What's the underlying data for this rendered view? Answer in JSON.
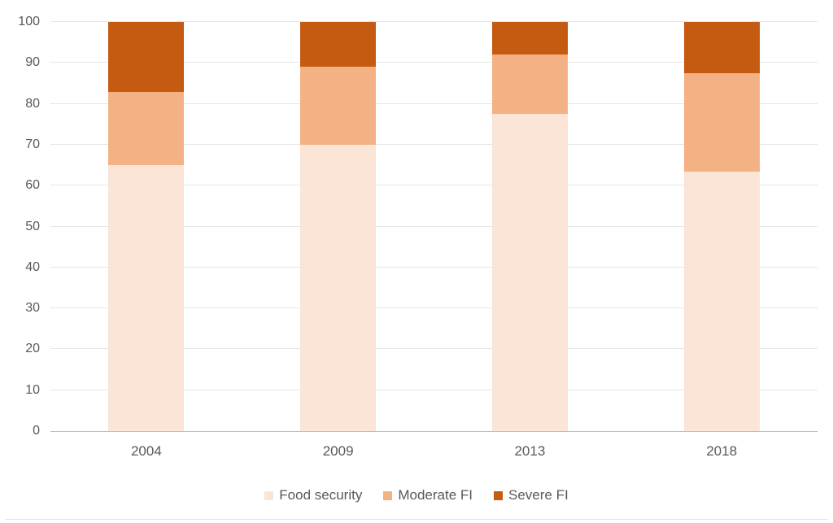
{
  "chart_data": {
    "type": "bar",
    "stacked": true,
    "title": "",
    "xlabel": "",
    "ylabel": "",
    "categories": [
      "2004",
      "2009",
      "2013",
      "2018"
    ],
    "series": [
      {
        "name": "Food security",
        "color": "#FBE5D6",
        "values": [
          65,
          70,
          77.5,
          63.5
        ]
      },
      {
        "name": "Moderate FI",
        "color": "#F4B183",
        "values": [
          18,
          19,
          14.5,
          24
        ]
      },
      {
        "name": "Severe FI",
        "color": "#C55A11",
        "values": [
          17,
          11,
          8,
          12.5
        ]
      }
    ],
    "ylim": [
      0,
      100
    ],
    "yticks": [
      0,
      10,
      20,
      30,
      40,
      50,
      60,
      70,
      80,
      90,
      100
    ],
    "grid": true,
    "legend_position": "bottom"
  },
  "colors": {
    "axis_text": "#595959",
    "gridline": "#E7E6E6",
    "baseline": "#BFBFBF",
    "background": "#FFFFFF"
  }
}
